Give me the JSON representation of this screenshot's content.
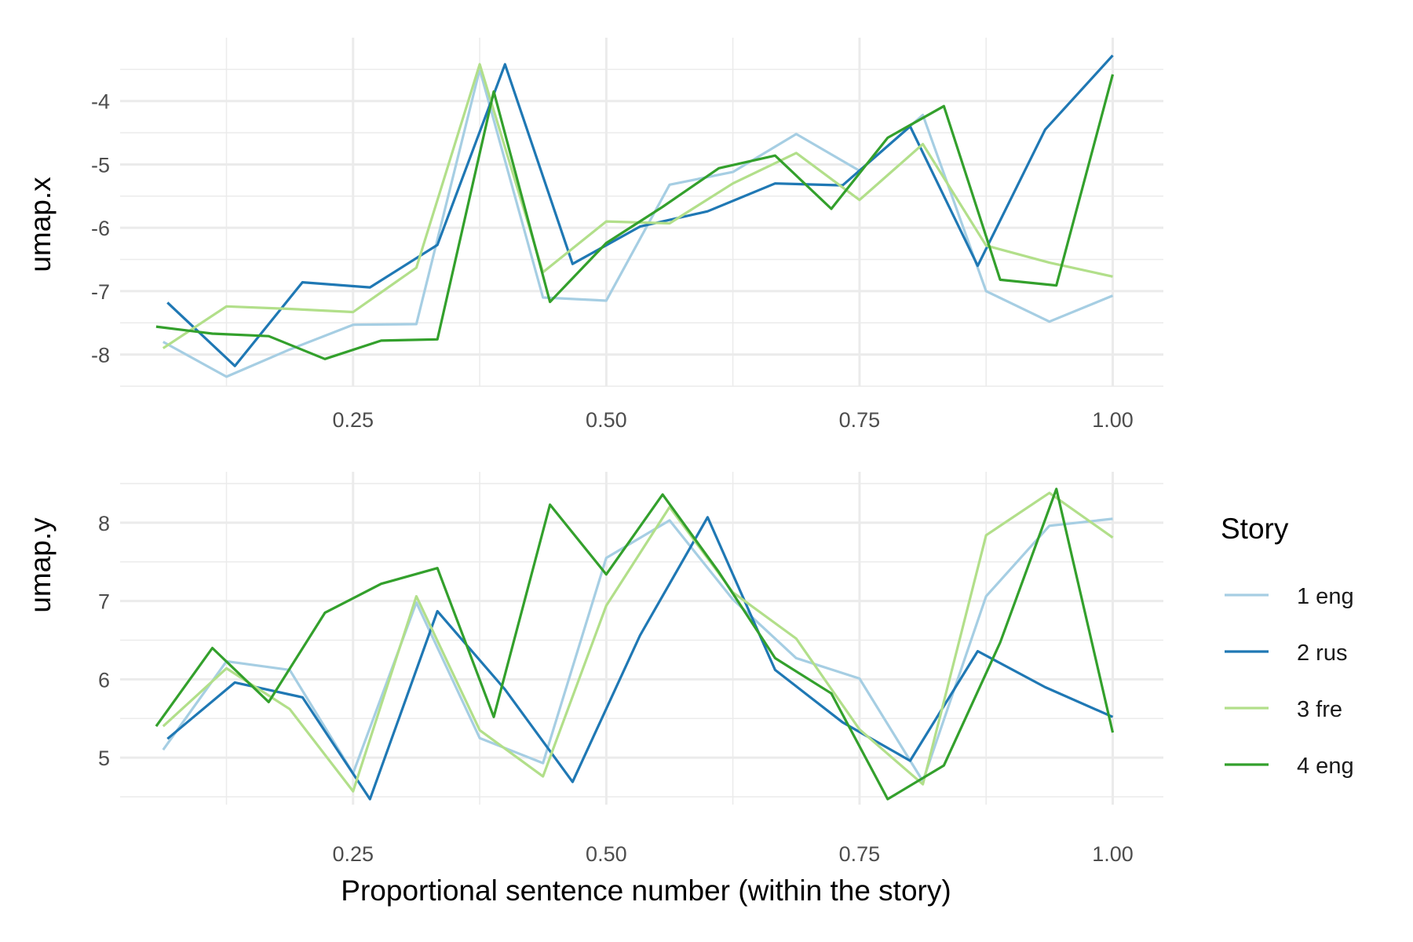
{
  "chart_data": {
    "type": "line",
    "xlabel": "Proportional sentence number (within the story)",
    "x_ticks": [
      0.25,
      0.5,
      0.75,
      1.0
    ],
    "x_tick_labels": [
      "0.25",
      "0.50",
      "0.75",
      "1.00"
    ],
    "xlim": [
      0.02,
      1.05
    ],
    "grid": true,
    "legend": {
      "title": "Story",
      "position": "right",
      "entries": [
        "1 eng",
        "2 rus",
        "3 fre",
        "4 eng"
      ]
    },
    "colors": [
      "#a6cee3",
      "#1f78b4",
      "#b2df8a",
      "#33a02c"
    ],
    "panels": [
      {
        "ylabel": "umap.x",
        "ylim": [
          -8.5,
          -3.0
        ],
        "y_ticks": [
          -8,
          -7,
          -6,
          -5,
          -4
        ],
        "y_tick_labels": [
          "-8",
          "-7",
          "-6",
          "-5",
          "-4"
        ],
        "series": [
          {
            "name": "1 eng",
            "x": [
              0.0625,
              0.125,
              0.1875,
              0.25,
              0.3125,
              0.375,
              0.4375,
              0.5,
              0.5625,
              0.625,
              0.6875,
              0.75,
              0.8125,
              0.875,
              0.9375,
              1.0
            ],
            "y": [
              -7.8,
              -8.35,
              -7.92,
              -7.53,
              -7.52,
              -3.5,
              -7.1,
              -7.15,
              -5.32,
              -5.12,
              -4.52,
              -5.1,
              -4.22,
              -7.0,
              -7.48,
              -7.07
            ]
          },
          {
            "name": "2 rus",
            "x": [
              0.0667,
              0.1333,
              0.2,
              0.2667,
              0.3333,
              0.4,
              0.4667,
              0.5333,
              0.6,
              0.6667,
              0.7333,
              0.8,
              0.8667,
              0.9333,
              1.0
            ],
            "y": [
              -7.18,
              -8.18,
              -6.86,
              -6.94,
              -6.27,
              -3.42,
              -6.57,
              -5.98,
              -5.74,
              -5.3,
              -5.33,
              -4.4,
              -6.6,
              -4.45,
              -3.28
            ]
          },
          {
            "name": "3 fre",
            "x": [
              0.0625,
              0.125,
              0.1875,
              0.25,
              0.3125,
              0.375,
              0.4375,
              0.5,
              0.5625,
              0.625,
              0.6875,
              0.75,
              0.8125,
              0.875,
              0.9375,
              1.0
            ],
            "y": [
              -7.9,
              -7.24,
              -7.28,
              -7.33,
              -6.63,
              -3.42,
              -6.7,
              -5.9,
              -5.93,
              -5.3,
              -4.82,
              -5.56,
              -4.68,
              -6.28,
              -6.55,
              -6.77
            ]
          },
          {
            "name": "4 eng",
            "x": [
              0.0556,
              0.1111,
              0.1667,
              0.2222,
              0.2778,
              0.3333,
              0.3889,
              0.4444,
              0.5,
              0.5556,
              0.6111,
              0.6667,
              0.7222,
              0.7778,
              0.8333,
              0.8889,
              0.9444,
              1.0
            ],
            "y": [
              -7.56,
              -7.67,
              -7.71,
              -8.07,
              -7.78,
              -7.76,
              -3.85,
              -7.17,
              -6.24,
              -5.67,
              -5.06,
              -4.86,
              -5.7,
              -4.58,
              -4.08,
              -6.82,
              -6.91,
              -3.58
            ]
          }
        ]
      },
      {
        "ylabel": "umap.y",
        "ylim": [
          4.4,
          8.65
        ],
        "y_ticks": [
          5,
          6,
          7,
          8
        ],
        "y_tick_labels": [
          "5",
          "6",
          "7",
          "8"
        ],
        "series": [
          {
            "name": "1 eng",
            "x": [
              0.0625,
              0.125,
              0.1875,
              0.25,
              0.3125,
              0.375,
              0.4375,
              0.5,
              0.5625,
              0.625,
              0.6875,
              0.75,
              0.8125,
              0.875,
              0.9375,
              1.0
            ],
            "y": [
              5.1,
              6.23,
              6.12,
              4.8,
              6.98,
              5.25,
              4.93,
              7.55,
              8.03,
              7.02,
              6.27,
              6.01,
              4.7,
              7.06,
              7.96,
              8.05
            ]
          },
          {
            "name": "2 rus",
            "x": [
              0.0667,
              0.1333,
              0.2,
              0.2667,
              0.3333,
              0.4,
              0.4667,
              0.5333,
              0.6,
              0.6667,
              0.7333,
              0.8,
              0.8667,
              0.9333,
              1.0
            ],
            "y": [
              5.24,
              5.96,
              5.77,
              4.47,
              6.87,
              5.87,
              4.69,
              6.56,
              8.07,
              6.12,
              5.45,
              4.96,
              6.36,
              5.9,
              5.52
            ]
          },
          {
            "name": "3 fre",
            "x": [
              0.0625,
              0.125,
              0.1875,
              0.25,
              0.3125,
              0.375,
              0.4375,
              0.5,
              0.5625,
              0.625,
              0.6875,
              0.75,
              0.8125,
              0.875,
              0.9375,
              1.0
            ],
            "y": [
              5.4,
              6.14,
              5.62,
              4.57,
              7.06,
              5.35,
              4.76,
              6.94,
              8.2,
              7.11,
              6.52,
              5.36,
              4.66,
              7.84,
              8.38,
              7.81
            ]
          },
          {
            "name": "4 eng",
            "x": [
              0.0556,
              0.1111,
              0.1667,
              0.2222,
              0.2778,
              0.3333,
              0.3889,
              0.4444,
              0.5,
              0.5556,
              0.6111,
              0.6667,
              0.7222,
              0.7778,
              0.8333,
              0.8889,
              0.9444,
              1.0
            ],
            "y": [
              5.4,
              6.4,
              5.71,
              6.85,
              7.22,
              7.42,
              5.52,
              8.23,
              7.34,
              8.36,
              7.37,
              6.27,
              5.82,
              4.47,
              4.9,
              6.47,
              8.43,
              5.32
            ]
          }
        ]
      }
    ]
  }
}
